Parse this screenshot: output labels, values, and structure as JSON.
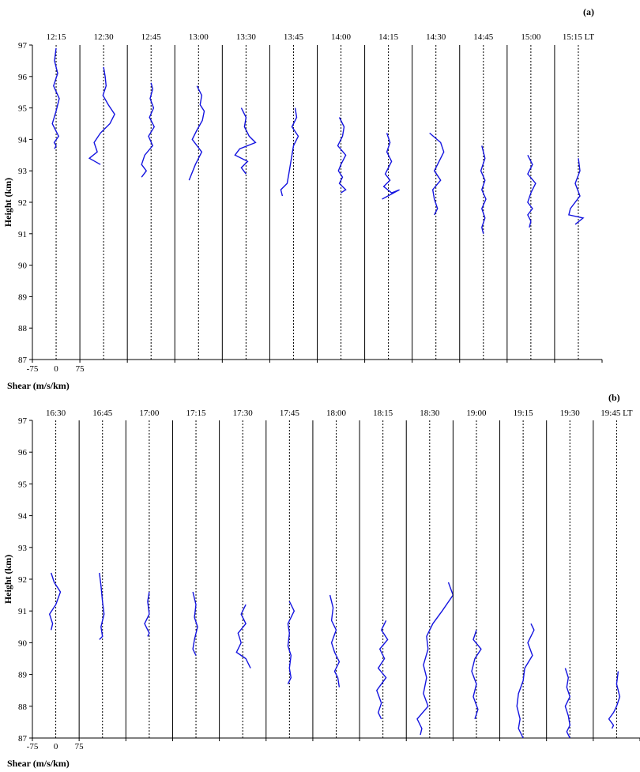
{
  "chart_data": [
    {
      "type": "line",
      "panel_label": "(a)",
      "ylabel": "Height (km)",
      "xlabel": "Shear (m/s/km)",
      "ylim": [
        87,
        97
      ],
      "y_ticks": [
        "87",
        "88",
        "89",
        "90",
        "91",
        "92",
        "93",
        "94",
        "95",
        "96",
        "97"
      ],
      "x_ticks": [
        "-75",
        "0",
        "75"
      ],
      "columns": [
        "12:15",
        "12:30",
        "12:45",
        "13:00",
        "13:30",
        "13:45",
        "14:00",
        "14:15",
        "14:30",
        "14:45",
        "15:00",
        "15:15 LT"
      ],
      "series": [
        {
          "x": [
            0,
            -5,
            5,
            -8,
            10,
            0,
            -12,
            8,
            -6,
            0,
            -5
          ],
          "y": [
            96.9,
            96.5,
            96.1,
            95.7,
            95.3,
            94.9,
            94.5,
            94.1,
            93.9,
            93.8,
            93.7
          ]
        },
        {
          "x": [
            0,
            5,
            8,
            -2,
            15,
            35,
            20,
            -10,
            -30,
            -20,
            -45,
            -10
          ],
          "y": [
            96.3,
            96.0,
            95.7,
            95.4,
            95.1,
            94.8,
            94.5,
            94.2,
            93.9,
            93.6,
            93.4,
            93.2
          ]
        },
        {
          "x": [
            0,
            5,
            -3,
            8,
            -5,
            10,
            -8,
            5,
            -20,
            -30,
            -15,
            -30
          ],
          "y": [
            95.8,
            95.6,
            95.3,
            95.0,
            94.7,
            94.4,
            94.1,
            93.8,
            93.5,
            93.2,
            93.0,
            92.8
          ]
        },
        {
          "x": [
            -5,
            10,
            5,
            18,
            12,
            -5,
            -20,
            10,
            -10,
            -30
          ],
          "y": [
            95.7,
            95.4,
            95.1,
            94.9,
            94.6,
            94.3,
            94.0,
            93.6,
            93.2,
            92.7
          ]
        },
        {
          "x": [
            -15,
            0,
            -5,
            10,
            30,
            -20,
            -35,
            5,
            -15,
            0
          ],
          "y": [
            95.0,
            94.7,
            94.4,
            94.1,
            93.9,
            93.7,
            93.5,
            93.3,
            93.1,
            92.9
          ]
        },
        {
          "x": [
            5,
            10,
            -5,
            15,
            0,
            -5,
            -10,
            -15,
            -20,
            -40,
            -35
          ],
          "y": [
            95.0,
            94.7,
            94.4,
            94.1,
            93.8,
            93.5,
            93.2,
            92.9,
            92.6,
            92.4,
            92.2
          ]
        },
        {
          "x": [
            -5,
            10,
            5,
            -10,
            15,
            0,
            -8,
            5,
            -5,
            15,
            0
          ],
          "y": [
            94.7,
            94.4,
            94.1,
            93.8,
            93.5,
            93.2,
            93.0,
            92.8,
            92.6,
            92.4,
            92.3
          ]
        },
        {
          "x": [
            -5,
            5,
            -5,
            10,
            0,
            -10,
            5,
            -15,
            10,
            35,
            -20
          ],
          "y": [
            94.2,
            93.9,
            93.6,
            93.3,
            93.1,
            92.9,
            92.7,
            92.5,
            92.3,
            92.4,
            92.1
          ]
        },
        {
          "x": [
            -20,
            15,
            25,
            10,
            -5,
            15,
            -10,
            -5,
            5,
            -5
          ],
          "y": [
            94.2,
            93.9,
            93.6,
            93.3,
            93.0,
            92.7,
            92.4,
            92.1,
            91.8,
            91.6
          ]
        },
        {
          "x": [
            -5,
            5,
            -8,
            5,
            -5,
            8,
            -5,
            5,
            -5,
            0
          ],
          "y": [
            93.8,
            93.4,
            93.0,
            92.7,
            92.4,
            92.1,
            91.8,
            91.5,
            91.2,
            91.0
          ]
        },
        {
          "x": [
            -10,
            5,
            -10,
            15,
            0,
            -10,
            5,
            -10,
            0,
            -5
          ],
          "y": [
            93.5,
            93.2,
            92.9,
            92.6,
            92.3,
            92.0,
            91.8,
            91.6,
            91.4,
            91.2
          ]
        },
        {
          "x": [
            0,
            5,
            -10,
            5,
            -25,
            -30,
            15,
            -10
          ],
          "y": [
            93.4,
            93.0,
            92.6,
            92.2,
            91.8,
            91.6,
            91.5,
            91.3
          ]
        }
      ]
    },
    {
      "type": "line",
      "panel_label": "(b)",
      "ylabel": "Height (km)",
      "xlabel": "Shear (m/s/km)",
      "ylim": [
        87,
        97
      ],
      "y_ticks": [
        "87",
        "88",
        "89",
        "90",
        "91",
        "92",
        "93",
        "94",
        "95",
        "96",
        "97"
      ],
      "x_ticks": [
        "-75",
        "0",
        "75"
      ],
      "columns": [
        "16:30",
        "16:45",
        "17:00",
        "17:15",
        "17:30",
        "17:45",
        "18:00",
        "18:15",
        "18:30",
        "19:00",
        "19:15",
        "19:30",
        "19:45 LT"
      ],
      "series": [
        {
          "x": [
            -15,
            -5,
            15,
            0,
            -20,
            -10,
            -15
          ],
          "y": [
            92.2,
            91.9,
            91.6,
            91.2,
            90.9,
            90.6,
            90.4
          ]
        },
        {
          "x": [
            -10,
            -5,
            0,
            5,
            -5,
            0,
            -10
          ],
          "y": [
            92.2,
            91.8,
            91.3,
            90.9,
            90.5,
            90.2,
            90.1
          ]
        },
        {
          "x": [
            0,
            -5,
            0,
            -15,
            0,
            -5
          ],
          "y": [
            91.6,
            91.3,
            90.9,
            90.6,
            90.3,
            90.2
          ]
        },
        {
          "x": [
            -10,
            0,
            -5,
            5,
            -5,
            -10,
            0
          ],
          "y": [
            91.6,
            91.2,
            90.8,
            90.5,
            90.1,
            89.8,
            89.6
          ]
        },
        {
          "x": [
            10,
            -5,
            10,
            -15,
            -5,
            -20,
            10,
            25
          ],
          "y": [
            91.2,
            90.9,
            90.6,
            90.3,
            90.0,
            89.7,
            89.5,
            89.2
          ]
        },
        {
          "x": [
            0,
            15,
            -5,
            0,
            -5,
            5,
            0,
            5,
            -5
          ],
          "y": [
            91.3,
            91.0,
            90.6,
            90.3,
            89.9,
            89.6,
            89.2,
            88.9,
            88.7
          ]
        },
        {
          "x": [
            -20,
            -10,
            -15,
            0,
            -15,
            -5,
            10,
            -5,
            5,
            10
          ],
          "y": [
            91.5,
            91.1,
            90.7,
            90.4,
            90.0,
            89.7,
            89.4,
            89.1,
            88.9,
            88.6
          ]
        },
        {
          "x": [
            10,
            -5,
            15,
            -10,
            5,
            -15,
            10,
            -20,
            -5,
            -15,
            -5
          ],
          "y": [
            90.7,
            90.4,
            90.1,
            89.8,
            89.5,
            89.2,
            88.9,
            88.5,
            88.1,
            87.8,
            87.6
          ]
        },
        {
          "x": [
            60,
            75,
            40,
            10,
            -10,
            -5,
            -20,
            -10,
            -20,
            -5,
            -40,
            -25,
            -30
          ],
          "y": [
            91.9,
            91.5,
            91.0,
            90.6,
            90.2,
            89.8,
            89.3,
            88.9,
            88.4,
            88.0,
            87.6,
            87.3,
            87.1
          ]
        },
        {
          "x": [
            0,
            -10,
            15,
            -5,
            -15,
            0,
            -10,
            5,
            -5
          ],
          "y": [
            90.4,
            90.1,
            89.8,
            89.5,
            89.1,
            88.7,
            88.3,
            87.9,
            87.6
          ]
        },
        {
          "x": [
            25,
            35,
            15,
            30,
            5,
            0,
            -15,
            -20,
            -10,
            -15,
            0
          ],
          "y": [
            90.6,
            90.4,
            90.0,
            89.6,
            89.2,
            88.8,
            88.4,
            88.0,
            87.6,
            87.3,
            87.0
          ]
        },
        {
          "x": [
            -15,
            -5,
            -10,
            0,
            -15,
            -5,
            0,
            -10,
            0
          ],
          "y": [
            89.2,
            88.9,
            88.6,
            88.3,
            88.0,
            87.7,
            87.4,
            87.2,
            87.0
          ]
        },
        {
          "x": [
            5,
            0,
            10,
            0,
            -10,
            -25,
            -10,
            -15
          ],
          "y": [
            89.1,
            88.7,
            88.3,
            88.0,
            87.8,
            87.6,
            87.4,
            87.3
          ]
        }
      ]
    }
  ]
}
